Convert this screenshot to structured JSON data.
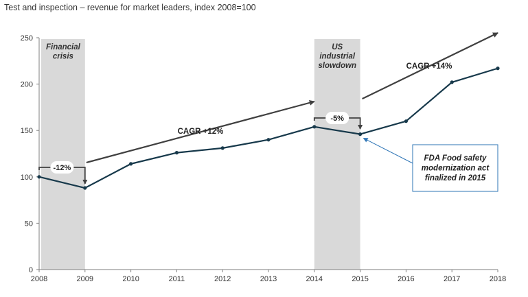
{
  "title": "Test and inspection – revenue for market leaders, index 2008=100",
  "colors": {
    "line": "#17394b",
    "shade": "#d9d9d9",
    "arrow": "#404040",
    "callout_border": "#2e75b6",
    "axis": "#7f7f7f"
  },
  "chart_data": {
    "type": "line",
    "title": "Test and inspection – revenue for market leaders, index 2008=100",
    "xlabel": "",
    "ylabel": "",
    "x": [
      2008,
      2009,
      2010,
      2011,
      2012,
      2013,
      2014,
      2015,
      2016,
      2017,
      2018
    ],
    "series": [
      {
        "values": [
          100,
          88,
          114,
          126,
          131,
          140,
          154,
          146,
          160,
          202,
          217
        ]
      }
    ],
    "ylim": [
      0,
      250
    ],
    "yticks": [
      0,
      50,
      100,
      150,
      200,
      250
    ],
    "grid": false,
    "shaded_periods": [
      {
        "from": 2008,
        "to": 2009,
        "label_lines": [
          "Financial",
          "crisis"
        ]
      },
      {
        "from": 2014,
        "to": 2015,
        "label_lines": [
          "US",
          "industrial",
          "slowdown"
        ]
      }
    ],
    "annotations": {
      "cagr_1": "CAGR +12%",
      "cagr_2": "CAGR +14%",
      "drop_1": "-12%",
      "drop_2": "-5%",
      "callout_lines": [
        "FDA Food safety",
        "modernization act",
        "finalized in 2015"
      ]
    }
  }
}
